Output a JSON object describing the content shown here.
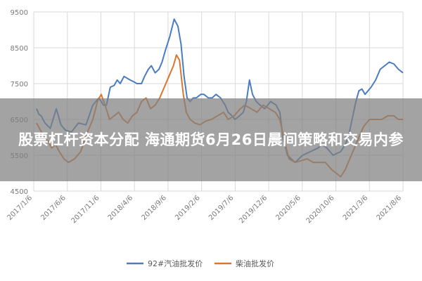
{
  "banner": {
    "title": "股票杠杆资本分配 海通期货6月26日晨间策略和交易内参"
  },
  "colors": {
    "series_1": "#4a7cc0",
    "series_2": "#d9772e",
    "grid": "#d9d9d9",
    "banner_overlay": "#808080"
  },
  "chart_data": {
    "type": "line",
    "title": "",
    "xlabel": "",
    "ylabel": "",
    "ylim": [
      4500,
      9500
    ],
    "yticks": [
      "9500",
      "8500",
      "7500",
      "6500",
      "5500",
      "4500"
    ],
    "xticks": [
      "2017/1/6",
      "2017/6/6",
      "2017/11/6",
      "2018/4/6",
      "2018/9/6",
      "2019/2/6",
      "2019/7/6",
      "2019/12/6",
      "2020/5/6",
      "2020/10/6",
      "2021/3/6",
      "2021/8/6"
    ],
    "grid": true,
    "legend_position": "bottom",
    "series": [
      {
        "name": "92#汽油批发价",
        "points": [
          [
            0,
            6800
          ],
          [
            0.03,
            6650
          ],
          [
            0.06,
            6600
          ],
          [
            0.11,
            6400
          ],
          [
            0.18,
            6250
          ],
          [
            0.26,
            6800
          ],
          [
            0.32,
            6350
          ],
          [
            0.38,
            6200
          ],
          [
            0.46,
            6150
          ],
          [
            0.55,
            6400
          ],
          [
            0.65,
            6350
          ],
          [
            0.74,
            6900
          ],
          [
            0.82,
            7100
          ],
          [
            0.88,
            6900
          ],
          [
            0.92,
            6900
          ],
          [
            0.97,
            7400
          ],
          [
            1.02,
            7450
          ],
          [
            1.06,
            7600
          ],
          [
            1.1,
            7500
          ],
          [
            1.15,
            7700
          ],
          [
            1.19,
            7650
          ],
          [
            1.23,
            7600
          ],
          [
            1.28,
            7550
          ],
          [
            1.32,
            7500
          ],
          [
            1.38,
            7500
          ],
          [
            1.42,
            7700
          ],
          [
            1.47,
            7900
          ],
          [
            1.51,
            8000
          ],
          [
            1.56,
            7800
          ],
          [
            1.61,
            7900
          ],
          [
            1.65,
            8100
          ],
          [
            1.69,
            8400
          ],
          [
            1.75,
            8800
          ],
          [
            1.81,
            9300
          ],
          [
            1.86,
            9100
          ],
          [
            1.9,
            8600
          ],
          [
            1.94,
            7700
          ],
          [
            1.98,
            7100
          ],
          [
            2.02,
            7000
          ],
          [
            2.06,
            7100
          ],
          [
            2.1,
            7100
          ],
          [
            2.16,
            7200
          ],
          [
            2.2,
            7200
          ],
          [
            2.26,
            7100
          ],
          [
            2.31,
            7100
          ],
          [
            2.36,
            7200
          ],
          [
            2.42,
            7100
          ],
          [
            2.48,
            6900
          ],
          [
            2.52,
            6700
          ],
          [
            2.57,
            6600
          ],
          [
            2.61,
            6500
          ],
          [
            2.67,
            6600
          ],
          [
            2.72,
            6700
          ],
          [
            2.76,
            7000
          ],
          [
            2.8,
            7600
          ],
          [
            2.84,
            7200
          ],
          [
            2.89,
            7000
          ],
          [
            2.94,
            6900
          ],
          [
            3.0,
            6800
          ],
          [
            3.08,
            7000
          ],
          [
            3.15,
            6900
          ],
          [
            3.2,
            6700
          ],
          [
            3.24,
            6000
          ],
          [
            3.3,
            5500
          ],
          [
            3.4,
            5300
          ],
          [
            3.5,
            5500
          ],
          [
            3.6,
            5600
          ],
          [
            3.7,
            5700
          ],
          [
            3.76,
            5800
          ],
          [
            3.82,
            5700
          ],
          [
            3.9,
            5500
          ],
          [
            4.0,
            5600
          ],
          [
            4.06,
            5800
          ],
          [
            4.1,
            6000
          ],
          [
            4.15,
            6500
          ],
          [
            4.2,
            7000
          ],
          [
            4.24,
            7300
          ],
          [
            4.28,
            7350
          ],
          [
            4.32,
            7200
          ],
          [
            4.4,
            7400
          ],
          [
            4.46,
            7600
          ],
          [
            4.52,
            7900
          ],
          [
            4.58,
            8000
          ],
          [
            4.64,
            8100
          ],
          [
            4.7,
            8050
          ],
          [
            4.76,
            7900
          ],
          [
            4.82,
            7800
          ]
        ]
      },
      {
        "name": "柴油批发价",
        "points": [
          [
            0,
            6400
          ],
          [
            0.05,
            6200
          ],
          [
            0.1,
            6000
          ],
          [
            0.15,
            5900
          ],
          [
            0.2,
            5700
          ],
          [
            0.25,
            5800
          ],
          [
            0.3,
            5600
          ],
          [
            0.36,
            5400
          ],
          [
            0.42,
            5300
          ],
          [
            0.5,
            5400
          ],
          [
            0.58,
            5600
          ],
          [
            0.66,
            6100
          ],
          [
            0.74,
            6500
          ],
          [
            0.8,
            7000
          ],
          [
            0.85,
            7200
          ],
          [
            0.9,
            6900
          ],
          [
            0.96,
            6500
          ],
          [
            1.02,
            6600
          ],
          [
            1.08,
            6700
          ],
          [
            1.14,
            6500
          ],
          [
            1.2,
            6400
          ],
          [
            1.26,
            6600
          ],
          [
            1.32,
            6700
          ],
          [
            1.38,
            7000
          ],
          [
            1.44,
            7100
          ],
          [
            1.5,
            6800
          ],
          [
            1.56,
            6900
          ],
          [
            1.62,
            7100
          ],
          [
            1.68,
            7400
          ],
          [
            1.74,
            7700
          ],
          [
            1.8,
            8000
          ],
          [
            1.84,
            8300
          ],
          [
            1.88,
            8150
          ],
          [
            1.93,
            7200
          ],
          [
            1.97,
            6700
          ],
          [
            2.02,
            6500
          ],
          [
            2.08,
            6400
          ],
          [
            2.15,
            6350
          ],
          [
            2.22,
            6450
          ],
          [
            2.3,
            6500
          ],
          [
            2.38,
            6600
          ],
          [
            2.46,
            6700
          ],
          [
            2.52,
            6500
          ],
          [
            2.6,
            6600
          ],
          [
            2.68,
            6800
          ],
          [
            2.74,
            6900
          ],
          [
            2.82,
            6800
          ],
          [
            2.9,
            6700
          ],
          [
            2.98,
            6900
          ],
          [
            3.06,
            6800
          ],
          [
            3.14,
            6700
          ],
          [
            3.2,
            6500
          ],
          [
            3.26,
            5900
          ],
          [
            3.32,
            5400
          ],
          [
            3.4,
            5300
          ],
          [
            3.48,
            5350
          ],
          [
            3.56,
            5400
          ],
          [
            3.64,
            5300
          ],
          [
            3.72,
            5300
          ],
          [
            3.8,
            5300
          ],
          [
            3.88,
            5100
          ],
          [
            3.94,
            5000
          ],
          [
            4.0,
            4900
          ],
          [
            4.06,
            5100
          ],
          [
            4.12,
            5400
          ],
          [
            4.18,
            5700
          ],
          [
            4.24,
            6000
          ],
          [
            4.3,
            6300
          ],
          [
            4.38,
            6500
          ],
          [
            4.46,
            6500
          ],
          [
            4.54,
            6500
          ],
          [
            4.62,
            6600
          ],
          [
            4.7,
            6600
          ],
          [
            4.76,
            6500
          ],
          [
            4.82,
            6500
          ]
        ]
      }
    ]
  }
}
